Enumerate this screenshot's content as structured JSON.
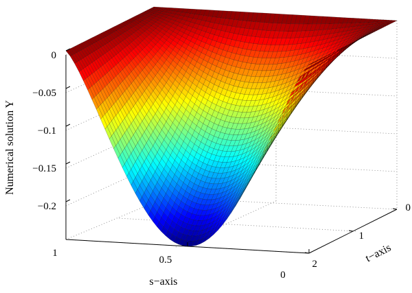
{
  "chart_data": {
    "type": "surface",
    "zlabel": "Numerical solution Y",
    "xlabel": "s−axis",
    "ylabel": "t−axis",
    "s_range": [
      0,
      1
    ],
    "t_range": [
      0,
      2
    ],
    "z_range": [
      -0.25,
      0
    ],
    "s_ticks": [
      "0",
      "0.5",
      "1"
    ],
    "t_ticks": [
      "0",
      "1",
      "2"
    ],
    "z_ticks": [
      "0",
      "−0.05",
      "−0.1",
      "−0.15",
      "−0.2"
    ],
    "surface_minimum": {
      "s": 0.5,
      "t": 2,
      "Y": -0.25
    },
    "colormap": "jet",
    "grid": true
  }
}
